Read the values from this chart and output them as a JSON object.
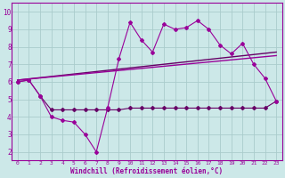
{
  "xlabel": "Windchill (Refroidissement éolien,°C)",
  "ylabel": "",
  "xlim": [
    -0.5,
    23.5
  ],
  "ylim": [
    1.5,
    10.5
  ],
  "yticks": [
    2,
    3,
    4,
    5,
    6,
    7,
    8,
    9,
    10
  ],
  "xticks": [
    0,
    1,
    2,
    3,
    4,
    5,
    6,
    7,
    8,
    9,
    10,
    11,
    12,
    13,
    14,
    15,
    16,
    17,
    18,
    19,
    20,
    21,
    22,
    23
  ],
  "background_color": "#cce8e8",
  "grid_color": "#aacccc",
  "line_color": "#990099",
  "dark_line_color": "#660066",
  "series": {
    "line1_x": [
      0,
      1,
      2,
      3,
      4,
      5,
      6,
      7,
      8,
      9,
      10,
      11,
      12,
      13,
      14,
      15,
      16,
      17,
      18,
      19,
      20,
      21,
      22,
      23
    ],
    "line1_y": [
      6.0,
      6.1,
      5.2,
      4.0,
      3.8,
      3.7,
      3.0,
      2.0,
      4.5,
      7.3,
      9.4,
      8.4,
      7.7,
      9.3,
      9.0,
      9.1,
      9.5,
      9.0,
      8.1,
      7.6,
      8.2,
      7.0,
      6.2,
      4.9
    ],
    "line2_x": [
      0,
      1,
      2,
      3,
      4,
      5,
      6,
      7,
      8,
      9,
      10,
      11,
      12,
      13,
      14,
      15,
      16,
      17,
      18,
      19,
      20,
      21,
      22,
      23
    ],
    "line2_y": [
      6.0,
      6.1,
      5.2,
      4.4,
      4.4,
      4.4,
      4.4,
      4.4,
      4.4,
      4.4,
      4.5,
      4.5,
      4.5,
      4.5,
      4.5,
      4.5,
      4.5,
      4.5,
      4.5,
      4.5,
      4.5,
      4.5,
      4.5,
      4.9
    ],
    "line3_x": [
      0,
      23
    ],
    "line3_y": [
      6.1,
      7.7
    ],
    "line4_x": [
      0,
      23
    ],
    "line4_y": [
      6.1,
      7.5
    ]
  }
}
